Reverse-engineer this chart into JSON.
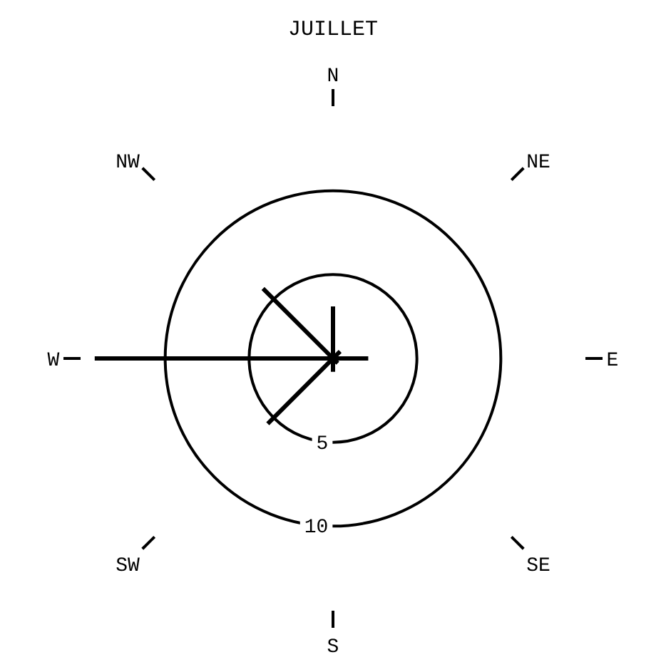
{
  "chart_data": {
    "type": "radar",
    "title": "JUILLET",
    "categories": [
      "N",
      "NE",
      "E",
      "SE",
      "S",
      "SW",
      "W",
      "NW"
    ],
    "series": [
      {
        "color": "#000000",
        "values": [
          3.1,
          0.6,
          2.1,
          0.4,
          0.8,
          5.5,
          14.2,
          5.9
        ]
      }
    ],
    "ylim": [
      0,
      15
    ],
    "yticks": [
      5,
      10
    ],
    "grid": true
  }
}
